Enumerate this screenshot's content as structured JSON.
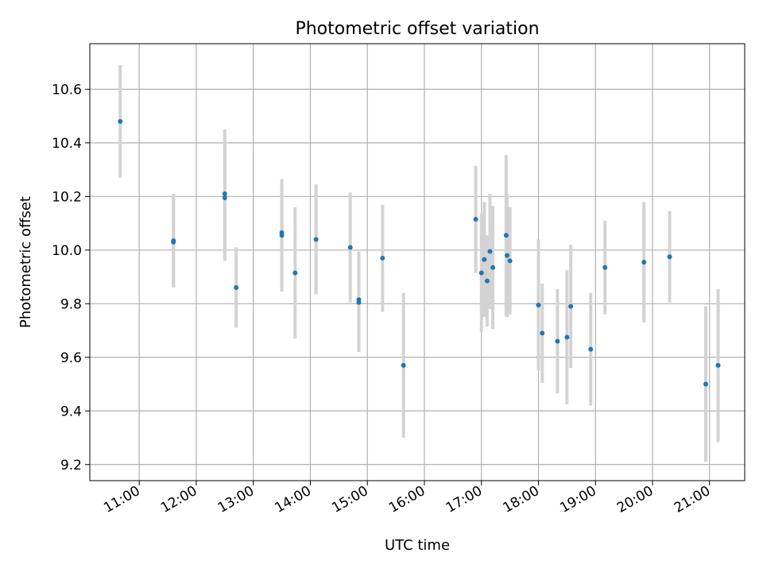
{
  "chart_data": {
    "type": "scatter",
    "title": "Photometric offset variation",
    "xlabel": "UTC time",
    "ylabel": "Photometric offset",
    "xlim": [
      "10:08",
      "21:37"
    ],
    "ylim": [
      9.14,
      10.77
    ],
    "grid": true,
    "x_ticks": [
      "11:00",
      "12:00",
      "13:00",
      "14:00",
      "15:00",
      "16:00",
      "17:00",
      "18:00",
      "19:00",
      "20:00",
      "21:00"
    ],
    "y_ticks": [
      9.2,
      9.4,
      9.6,
      9.8,
      10.0,
      10.2,
      10.4,
      10.6
    ],
    "colors": {
      "marker": "#1f77b4",
      "errorbar": "#d3d3d3",
      "grid": "#b0b0b0"
    },
    "points": [
      {
        "t": "10:40",
        "y": 10.48,
        "err": 0.21
      },
      {
        "t": "11:36",
        "y": 10.03,
        "err": 0.17
      },
      {
        "t": "11:36",
        "y": 10.035,
        "err": 0.175
      },
      {
        "t": "12:30",
        "y": 10.21,
        "err": 0.24
      },
      {
        "t": "12:30",
        "y": 10.195,
        "err": 0.235
      },
      {
        "t": "12:42",
        "y": 9.86,
        "err": 0.15
      },
      {
        "t": "13:30",
        "y": 10.055,
        "err": 0.21
      },
      {
        "t": "13:30",
        "y": 10.065,
        "err": 0.2
      },
      {
        "t": "13:44",
        "y": 9.915,
        "err": 0.245
      },
      {
        "t": "14:06",
        "y": 10.04,
        "err": 0.205
      },
      {
        "t": "14:42",
        "y": 10.01,
        "err": 0.205
      },
      {
        "t": "14:51",
        "y": 9.805,
        "err": 0.185
      },
      {
        "t": "14:51",
        "y": 9.815,
        "err": 0.18
      },
      {
        "t": "15:16",
        "y": 9.97,
        "err": 0.2
      },
      {
        "t": "15:38",
        "y": 9.57,
        "err": 0.27
      },
      {
        "t": "16:54",
        "y": 10.115,
        "err": 0.2
      },
      {
        "t": "17:00",
        "y": 9.915,
        "err": 0.22
      },
      {
        "t": "17:03",
        "y": 9.965,
        "err": 0.215
      },
      {
        "t": "17:06",
        "y": 9.885,
        "err": 0.17
      },
      {
        "t": "17:09",
        "y": 9.995,
        "err": 0.215
      },
      {
        "t": "17:12",
        "y": 9.935,
        "err": 0.23
      },
      {
        "t": "17:26",
        "y": 10.055,
        "err": 0.3
      },
      {
        "t": "17:27",
        "y": 9.98,
        "err": 0.23
      },
      {
        "t": "17:30",
        "y": 9.96,
        "err": 0.2
      },
      {
        "t": "18:00",
        "y": 9.795,
        "err": 0.245
      },
      {
        "t": "18:04",
        "y": 9.69,
        "err": 0.185
      },
      {
        "t": "18:20",
        "y": 9.66,
        "err": 0.195
      },
      {
        "t": "18:30",
        "y": 9.675,
        "err": 0.25
      },
      {
        "t": "18:34",
        "y": 9.79,
        "err": 0.23
      },
      {
        "t": "18:55",
        "y": 9.63,
        "err": 0.21
      },
      {
        "t": "19:10",
        "y": 9.935,
        "err": 0.175
      },
      {
        "t": "19:51",
        "y": 9.955,
        "err": 0.225
      },
      {
        "t": "20:18",
        "y": 9.975,
        "err": 0.17
      },
      {
        "t": "20:56",
        "y": 9.5,
        "err": 0.29
      },
      {
        "t": "21:09",
        "y": 9.57,
        "err": 0.285
      }
    ]
  }
}
